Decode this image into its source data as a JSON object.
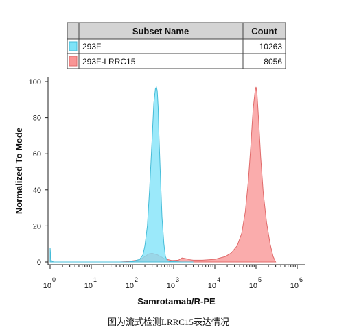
{
  "legend_table": {
    "header_name": "Subset Name",
    "header_count": "Count",
    "rows": [
      {
        "name": "293F",
        "count": "10263",
        "color": "#7fe3f8"
      },
      {
        "name": "293F-LRRC15",
        "count": "8056",
        "color": "#f99595"
      }
    ]
  },
  "caption": "图为流式检测LRRC15表达情况",
  "chart_data": {
    "type": "area",
    "xlabel": "Samrotamab/R-PE",
    "ylabel": "Normalized To Mode",
    "x_scale": "log",
    "xlim": [
      1,
      1000000
    ],
    "ylim": [
      0,
      100
    ],
    "x_ticks": [
      {
        "base": "10",
        "exp": "0"
      },
      {
        "base": "10",
        "exp": "1"
      },
      {
        "base": "10",
        "exp": "2"
      },
      {
        "base": "10",
        "exp": "3"
      },
      {
        "base": "10",
        "exp": "4"
      },
      {
        "base": "10",
        "exp": "5"
      },
      {
        "base": "10",
        "exp": "6"
      }
    ],
    "y_ticks": [
      "0",
      "20",
      "40",
      "60",
      "80",
      "100"
    ],
    "grid": false,
    "series": [
      {
        "name": "293F",
        "color": "#7fe3f8",
        "stroke": "#45bcd8",
        "x": [
          1,
          1.05,
          1.2,
          2,
          10,
          50,
          80,
          110,
          150,
          180,
          200,
          230,
          260,
          300,
          330,
          360,
          380,
          400,
          420,
          440,
          480,
          520,
          580,
          630,
          700,
          800,
          1000,
          1500,
          3000
        ],
        "y": [
          8,
          1,
          0,
          0,
          0,
          0,
          0,
          0.5,
          1.5,
          4,
          9,
          20,
          40,
          68,
          88,
          96,
          97,
          95,
          86,
          70,
          46,
          25,
          10,
          3,
          0.8,
          0.3,
          0.2,
          0,
          0
        ]
      },
      {
        "name": "293F-LRRC15",
        "color": "#f99595",
        "stroke": "#e06a6a",
        "x": [
          1,
          1.05,
          1.2,
          2,
          10,
          50,
          70,
          100,
          150,
          200,
          250,
          300,
          400,
          600,
          900,
          1300,
          1600,
          2000,
          2500,
          3000,
          5000,
          10000,
          18000,
          25000,
          35000,
          45000,
          55000,
          65000,
          75000,
          85000,
          95000,
          100000,
          105000,
          115000,
          130000,
          150000,
          180000,
          220000,
          260000,
          300000
        ],
        "y": [
          6,
          0.5,
          0,
          0,
          0,
          0,
          0.2,
          0.6,
          1.2,
          3,
          4.5,
          4.8,
          4,
          1.8,
          0.8,
          1,
          2.2,
          1.8,
          1.2,
          1,
          1,
          1.5,
          3,
          5,
          9,
          16,
          28,
          45,
          65,
          85,
          95,
          97,
          94,
          80,
          58,
          38,
          22,
          10,
          3,
          0
        ]
      }
    ]
  }
}
